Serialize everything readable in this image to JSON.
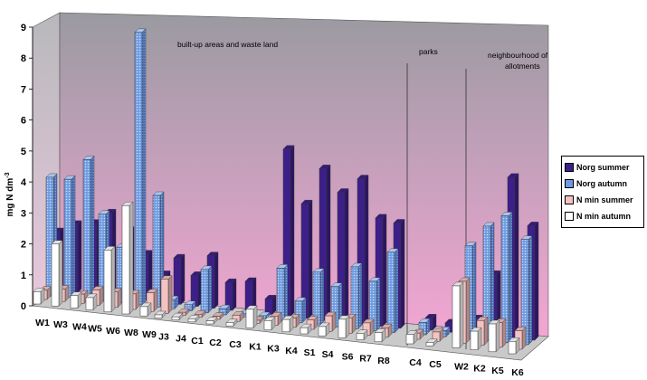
{
  "chart_data": {
    "type": "bar",
    "three_d": true,
    "ylabel": "mg N dm-3",
    "ylabel_main": "mg N dm",
    "ylabel_sup": "-3",
    "ylim": [
      0,
      9
    ],
    "yticks": [
      "0",
      "1",
      "2",
      "3",
      "4",
      "5",
      "6",
      "7",
      "8",
      "9"
    ],
    "grid": false,
    "legend_position": "right",
    "categories": [
      "W1",
      "W3",
      "W4",
      "W5",
      "W6",
      "W8",
      "W9",
      "J3",
      "J4",
      "C1",
      "C2",
      "C3",
      "K1",
      "K3",
      "K4",
      "S1",
      "S4",
      "S6",
      "R7",
      "R8",
      "C4",
      "C5",
      "W2",
      "K2",
      "K5",
      "K6"
    ],
    "series": [
      {
        "name": "Norg summer",
        "color": "#3d1f8a",
        "values": [
          1.9,
          2.2,
          2.3,
          2.7,
          2.2,
          1.5,
          0.9,
          1.5,
          1.0,
          1.7,
          0.9,
          1.0,
          0.5,
          5.4,
          3.7,
          4.9,
          4.2,
          4.7,
          3.5,
          3.4,
          0.4,
          0.3,
          0.5,
          2.0,
          5.2,
          3.7
        ]
      },
      {
        "name": "Norg autumn",
        "color": "#6f9be0",
        "values": [
          3.8,
          3.8,
          4.5,
          2.8,
          1.8,
          8.8,
          3.6,
          0.3,
          0.2,
          1.4,
          0.2,
          0.1,
          0.1,
          1.7,
          0.7,
          1.7,
          1.3,
          2.0,
          1.6,
          2.6,
          0.4,
          0.2,
          3.0,
          3.7,
          4.1,
          3.4
        ]
      },
      {
        "name": "N min summer",
        "color": "#f5c2c2",
        "values": [
          0.3,
          0.4,
          0.3,
          0.5,
          0.5,
          0.5,
          0.6,
          1.1,
          0.1,
          0.1,
          0.1,
          0.2,
          0.1,
          0.3,
          0.3,
          0.3,
          0.5,
          0.5,
          0.4,
          0.3,
          0.2,
          0.3,
          2.0,
          0.8,
          0.8,
          0.6
        ]
      },
      {
        "name": "N min autumn",
        "color": "#ffffff",
        "values": [
          0.4,
          2.0,
          0.4,
          0.4,
          2.0,
          3.5,
          0.3,
          0.1,
          0.1,
          0.1,
          0.1,
          0.1,
          0.6,
          0.3,
          0.4,
          0.2,
          0.3,
          0.6,
          0.2,
          0.3,
          0.3,
          0.1,
          2.0,
          0.6,
          0.9,
          0.4
        ]
      }
    ],
    "annotations": [
      {
        "text": "built-up areas and waste land"
      },
      {
        "text": "parks"
      },
      {
        "text": "neighbourhood of"
      },
      {
        "text": "allotments"
      }
    ]
  }
}
